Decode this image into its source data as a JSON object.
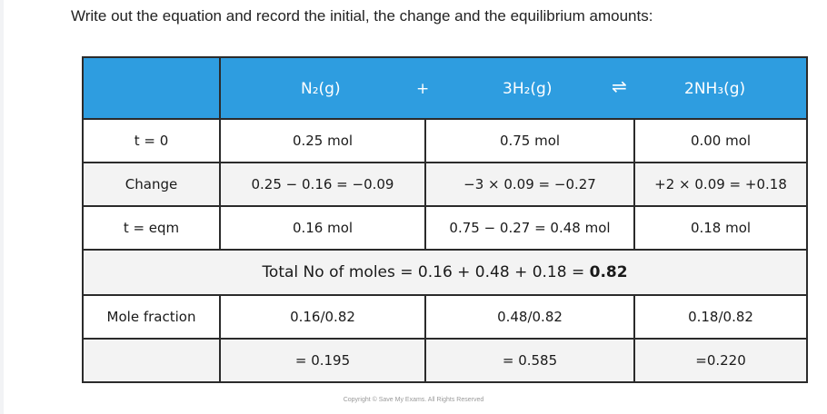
{
  "instruction": "Write out the equation and record the initial, the change and the equilibrium amounts:",
  "equation": {
    "n2": "N₂(g)",
    "plus": "+",
    "h2": "3H₂(g)",
    "arrow": "⇌",
    "nh3": "2NH₃(g)"
  },
  "rows": {
    "t0": {
      "label": "t = 0",
      "n2": "0.25 mol",
      "h2": "0.75 mol",
      "nh3": "0.00 mol"
    },
    "change": {
      "label": "Change",
      "n2": "0.25 − 0.16 = −0.09",
      "h2": "−3 × 0.09 = −0.27",
      "nh3": "+2 × 0.09 = +0.18"
    },
    "eqm": {
      "label": "t = eqm",
      "n2": "0.16 mol",
      "h2": "0.75 − 0.27 = 0.48 mol",
      "nh3": "0.18 mol"
    },
    "total": {
      "text": "Total No of moles = 0.16 + 0.48 + 0.18 = ",
      "value": "0.82"
    },
    "mole_fraction": {
      "label": "Mole fraction",
      "n2": "0.16/0.82",
      "h2": "0.48/0.82",
      "nh3": "0.18/0.82"
    },
    "result": {
      "label": "",
      "n2": "= 0.195",
      "h2": "= 0.585",
      "nh3": "=0.220"
    }
  },
  "copyright": "Copyright © Save My Exams. All Rights Reserved"
}
